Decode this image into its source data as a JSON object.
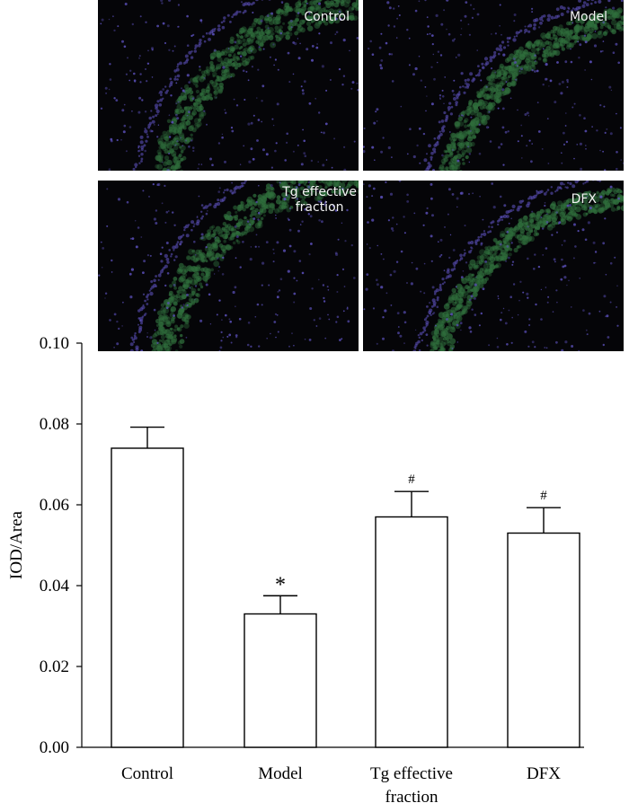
{
  "panels": [
    {
      "label": "Control"
    },
    {
      "label": "Model"
    },
    {
      "label_lines": [
        "Tg effective",
        "fraction"
      ]
    },
    {
      "label": "DFX"
    }
  ],
  "colors": {
    "background": "#050508",
    "stain_green": "#2f6e3c",
    "nuclei_blue": "#5a4fb8",
    "bar_fill": "#ffffff",
    "axis": "#000000"
  },
  "chart_data": {
    "type": "bar",
    "categories": [
      "Control",
      "Model",
      "Tg effective fraction",
      "DFX"
    ],
    "category_label_lines": [
      [
        "Control"
      ],
      [
        "Model"
      ],
      [
        "Tg effective",
        "fraction"
      ],
      [
        "DFX"
      ]
    ],
    "values": [
      0.074,
      0.033,
      0.057,
      0.053
    ],
    "errors": [
      0.0052,
      0.0045,
      0.0063,
      0.0063
    ],
    "significance": [
      "",
      "*",
      "#",
      "#"
    ],
    "ylabel": "IOD/Area",
    "ylim": [
      0.0,
      0.1
    ],
    "yticks": [
      "0.00",
      "0.02",
      "0.04",
      "0.06",
      "0.08",
      "0.10"
    ],
    "grid": false
  }
}
